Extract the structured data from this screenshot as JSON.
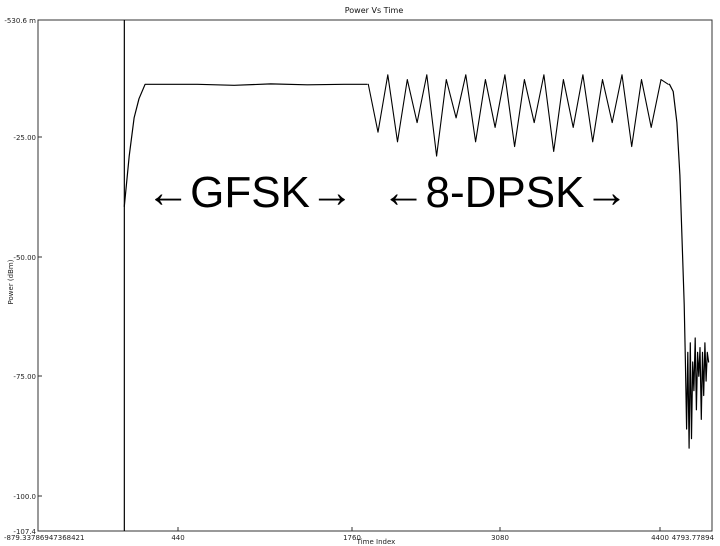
{
  "chart_data": {
    "type": "line",
    "title": "Power Vs Time",
    "xlabel": "Time Index",
    "ylabel": "Power (dBm)",
    "xlim": [
      -879.337869473684,
      4793.77894
    ],
    "ylim": [
      -107.4,
      -530.6
    ],
    "x_ticks": [
      {
        "value": -879.337869473684,
        "label": "-879.33786947368421"
      },
      {
        "value": 440,
        "label": "440"
      },
      {
        "value": 1760,
        "label": "1760"
      },
      {
        "value": 3080,
        "label": "3080"
      },
      {
        "value": 4400,
        "label": "4400"
      },
      {
        "value": 4793.77894,
        "label": "4793.77894"
      }
    ],
    "y_ticks": [
      {
        "value": -530.6,
        "label": "-530.6 m"
      },
      {
        "value": -25.0,
        "label": "-25.00"
      },
      {
        "value": -50.0,
        "label": "-50.00"
      },
      {
        "value": -75.0,
        "label": "-75.00"
      },
      {
        "value": -100.0,
        "label": "-100.0"
      },
      {
        "value": -107.4,
        "label": "-107.4"
      }
    ],
    "marker_x": 0,
    "grid": false,
    "legend": "none",
    "annotations": [
      "←GFSK→",
      "←8-DPSK→"
    ],
    "series": [
      {
        "x": [
          0,
          40,
          80,
          120,
          170,
          240,
          360,
          600,
          900,
          1200,
          1500,
          1800,
          1990
        ],
        "y": [
          -39.5,
          -29,
          -21,
          -17,
          -14,
          -14,
          -14,
          -14,
          -14.2,
          -13.9,
          -14.1,
          -14,
          -14
        ]
      },
      {
        "x": [
          2000,
          2080,
          2160,
          2240,
          2320,
          2400,
          2480,
          2560,
          2640,
          2720,
          2800,
          2880,
          2960,
          3040,
          3120,
          3200,
          3280,
          3360,
          3440,
          3520,
          3600,
          3680,
          3760,
          3840,
          3920,
          4000,
          4080,
          4160,
          4240,
          4320,
          4400,
          4460
        ],
        "y": [
          -14,
          -24,
          -12,
          -26,
          -13,
          -22,
          -12,
          -29,
          -13,
          -21,
          -12,
          -26,
          -13,
          -23,
          -12,
          -27,
          -13,
          -22,
          -12,
          -28,
          -13,
          -23,
          -12,
          -26,
          -13,
          -22,
          -12,
          -27,
          -13,
          -23,
          -13,
          -14
        ]
      },
      {
        "x": [
          4470,
          4500,
          4530,
          4555,
          4575,
          4590,
          4600,
          4610,
          4620,
          4630,
          4640,
          4650,
          4660,
          4670,
          4680,
          4690,
          4700,
          4710,
          4720,
          4730,
          4740,
          4750,
          4760,
          4770,
          4780,
          4790
        ],
        "y": [
          -14,
          -15.5,
          -22,
          -33,
          -48,
          -60,
          -72,
          -86,
          -70,
          -90,
          -68,
          -88,
          -72,
          -78,
          -67,
          -82,
          -70,
          -75,
          -69,
          -84,
          -70,
          -79,
          -68,
          -76,
          -70,
          -72
        ]
      }
    ]
  }
}
